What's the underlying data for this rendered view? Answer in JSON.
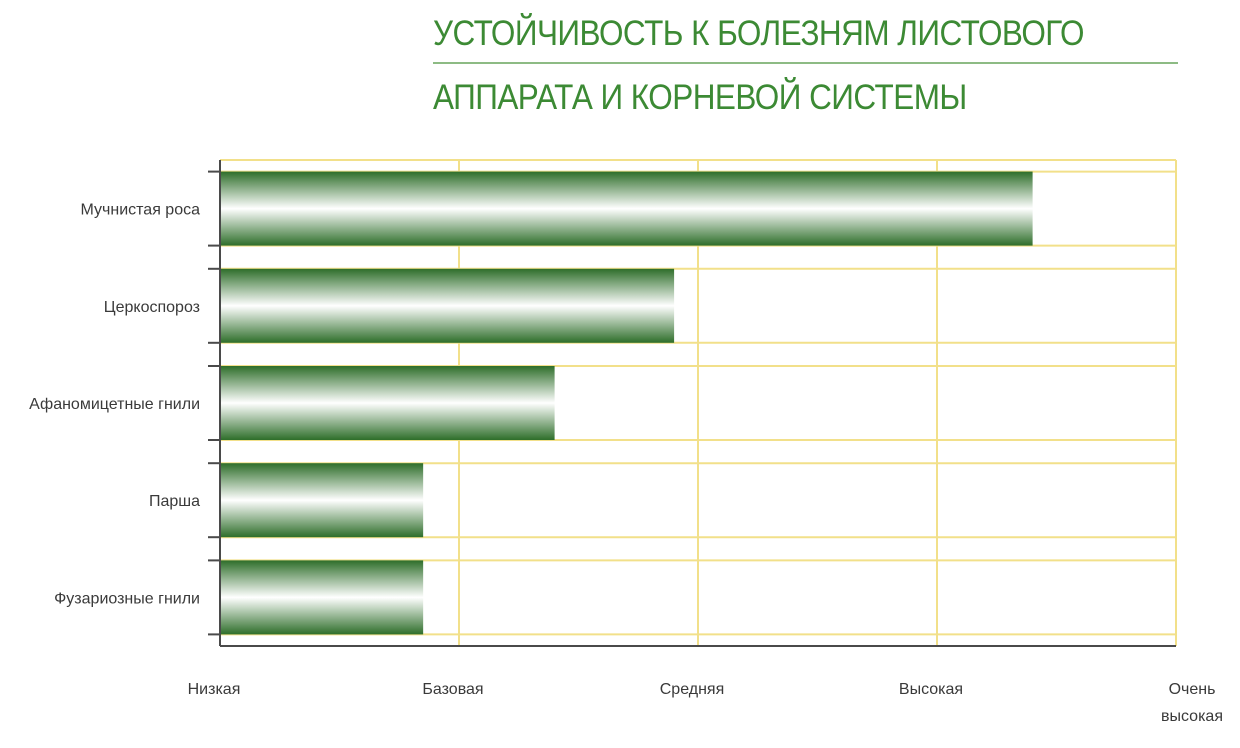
{
  "title": {
    "line1": "УСТОЙЧИВОСТЬ К БОЛЕЗНЯМ ЛИСТОВОГО",
    "line2": "АППАРАТА И КОРНЕВОЙ СИСТЕМЫ"
  },
  "colors": {
    "bar_dark": "#2e6e2a",
    "bar_light": "#ffffff",
    "grid": "#f2e08a",
    "axis": "#4a4a4a",
    "title": "#3c8a34"
  },
  "chart_data": {
    "type": "bar",
    "orientation": "horizontal",
    "title": "УСТОЙЧИВОСТЬ К БОЛЕЗНЯМ ЛИСТОВОГО АППАРАТА И КОРНЕВОЙ СИСТЕМЫ",
    "categories": [
      "Мучнистая роса",
      "Церкоспороз",
      "Афаномицетные гнили",
      "Парша",
      "Фузариозные гнили"
    ],
    "values": [
      3.4,
      1.9,
      1.4,
      0.85,
      0.85
    ],
    "x_ticks": [
      "Низкая",
      "Базовая",
      "Средняя",
      "Высокая",
      "Очень|высокая"
    ],
    "xlim": [
      0,
      4
    ],
    "grid": true
  }
}
